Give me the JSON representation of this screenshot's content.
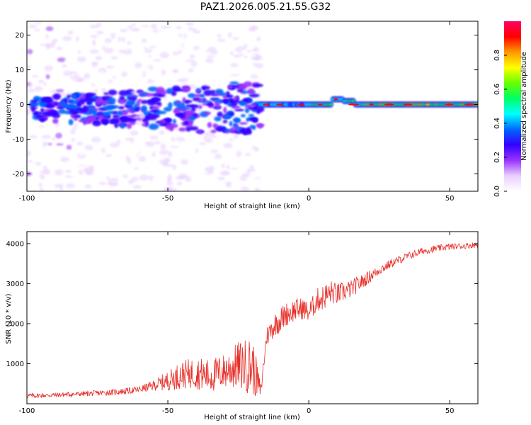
{
  "page_title": "PAZ1.2026.005.21.55.G32",
  "colors": {
    "snr_line": "#e8302a",
    "axis": "#000000"
  },
  "chart_data": [
    {
      "type": "heatmap",
      "title": "PAZ1.2026.005.21.55.G32",
      "xlabel": "Height of straight line (km)",
      "ylabel": "Frequency (Hz)",
      "xlim": [
        -100,
        60
      ],
      "ylim": [
        -25,
        24
      ],
      "x_ticks": [
        -100,
        -50,
        0,
        50
      ],
      "x_tick_labels": [
        "-100",
        "-50",
        "0",
        "50"
      ],
      "y_ticks": [
        -20,
        -10,
        0,
        10,
        20
      ],
      "y_tick_labels": [
        "-20",
        "-10",
        "0",
        "10",
        "20"
      ],
      "colorbar": {
        "label": "Normalized spectral amplitude",
        "range": [
          0.0,
          1.0
        ],
        "ticks": [
          0.0,
          0.2,
          0.4,
          0.6,
          0.8
        ],
        "tick_labels": [
          "0.0",
          "0.2",
          "0.4",
          "0.6",
          "0.8"
        ],
        "colormap": [
          "#ffffff",
          "#e8d0ff",
          "#9933ff",
          "#3300ff",
          "#0066ff",
          "#00ffff",
          "#00ff66",
          "#66ff00",
          "#ffff00",
          "#ff9900",
          "#ff0000",
          "#ff0066"
        ]
      },
      "ridge": {
        "description": "energy concentration near 0 Hz, broad scatter below -15 km, narrow tone above -15 km",
        "tone_frequency_hz": 0,
        "tone_start_km": -17
      }
    },
    {
      "type": "line",
      "xlabel": "Height of straight line (km)",
      "ylabel": "SNR (10 * v/v)",
      "xlim": [
        -100,
        60
      ],
      "ylim": [
        0,
        4300
      ],
      "x_ticks": [
        -100,
        -50,
        0,
        50
      ],
      "x_tick_labels": [
        "-100",
        "-50",
        "0",
        "50"
      ],
      "y_ticks": [
        1000,
        2000,
        3000,
        4000
      ],
      "y_tick_labels": [
        "1000",
        "2000",
        "3000",
        "4000"
      ],
      "series": [
        {
          "name": "SNR",
          "x": [
            -100,
            -90,
            -80,
            -70,
            -65,
            -60,
            -55,
            -50,
            -45,
            -40,
            -35,
            -30,
            -25,
            -20,
            -17,
            -15,
            -12,
            -10,
            -8,
            -5,
            -2,
            0,
            3,
            5,
            8,
            10,
            15,
            20,
            25,
            30,
            35,
            40,
            45,
            50,
            55,
            60
          ],
          "y": [
            180,
            200,
            230,
            260,
            290,
            330,
            420,
            500,
            620,
            650,
            560,
            680,
            780,
            720,
            250,
            1600,
            1900,
            2000,
            2150,
            2250,
            2300,
            2200,
            2500,
            2550,
            2700,
            2650,
            2800,
            3050,
            3300,
            3500,
            3650,
            3780,
            3850,
            3900,
            3920,
            3950
          ],
          "noise_amplitude": [
            120,
            120,
            130,
            150,
            160,
            170,
            260,
            500,
            700,
            800,
            850,
            900,
            1200,
            1500,
            400,
            500,
            600,
            650,
            600,
            600,
            550,
            500,
            600,
            650,
            600,
            550,
            450,
            350,
            250,
            220,
            200,
            180,
            170,
            160,
            150,
            150
          ]
        }
      ]
    }
  ]
}
